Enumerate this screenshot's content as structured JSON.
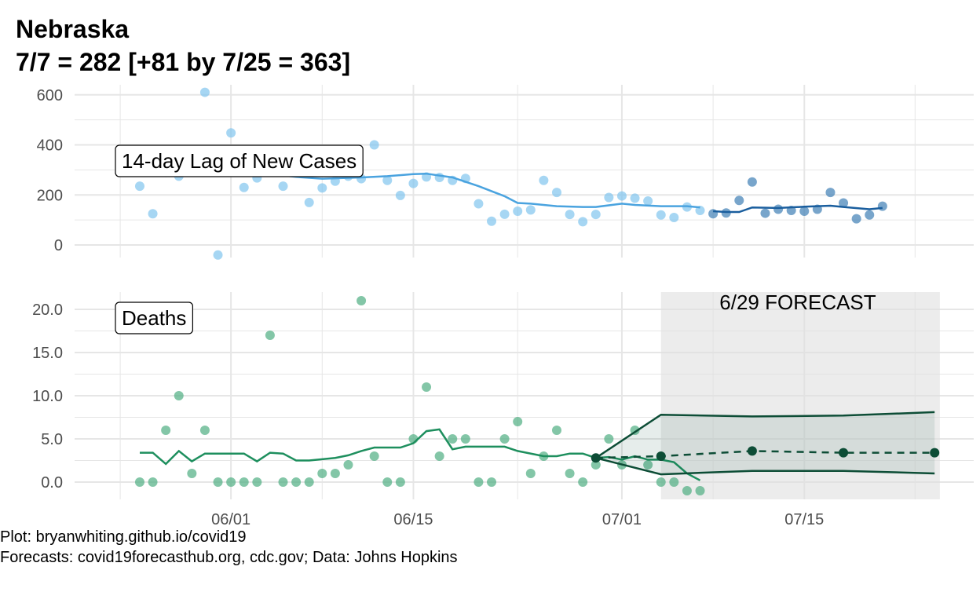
{
  "title": {
    "line1": "Nebraska",
    "line2": "7/7 = 282 [+81 by 7/25 = 363]"
  },
  "caption": {
    "line1": "Plot: bryanwhiting.github.io/covid19",
    "line2": "Forecasts: covid19forecasthub.org, cdc.gov; Data: Johns Hopkins"
  },
  "colors": {
    "cases_point": "#80c4ee",
    "cases_line": "#4aa3df",
    "cases_recent_point": "#3f7fb5",
    "cases_recent_line": "#1a5e9e",
    "deaths_point": "#4fae82",
    "deaths_line": "#1e8f5e",
    "forecast": "#0d4d36",
    "forecast_band": "#e0e0e0",
    "grid": "#e6e6e6"
  },
  "chart_data": [
    {
      "type": "scatter",
      "panel_label": "14-day Lag of New Cases",
      "x_ticks": [
        {
          "label": "06/01",
          "x": 7
        },
        {
          "label": "06/15",
          "x": 21
        },
        {
          "label": "07/01",
          "x": 37
        },
        {
          "label": "07/15",
          "x": 51
        }
      ],
      "y_ticks": [
        0,
        200,
        400,
        600
      ],
      "ylim": [
        -50,
        640
      ],
      "xlim": [
        -5,
        64
      ],
      "grid": true,
      "observed_points": [
        {
          "x": 0,
          "y": 235
        },
        {
          "x": 1,
          "y": 125
        },
        {
          "x": 2,
          "y": 290
        },
        {
          "x": 3,
          "y": 275
        },
        {
          "x": 4,
          "y": 305
        },
        {
          "x": 5,
          "y": 610
        },
        {
          "x": 6,
          "y": -40
        },
        {
          "x": 7,
          "y": 448
        },
        {
          "x": 8,
          "y": 230
        },
        {
          "x": 9,
          "y": 268
        },
        {
          "x": 10,
          "y": 300
        },
        {
          "x": 11,
          "y": 235
        },
        {
          "x": 12,
          "y": 300
        },
        {
          "x": 13,
          "y": 170
        },
        {
          "x": 14,
          "y": 228
        },
        {
          "x": 15,
          "y": 255
        },
        {
          "x": 16,
          "y": 275
        },
        {
          "x": 17,
          "y": 265
        },
        {
          "x": 18,
          "y": 400
        },
        {
          "x": 19,
          "y": 258
        },
        {
          "x": 20,
          "y": 198
        },
        {
          "x": 21,
          "y": 246
        },
        {
          "x": 22,
          "y": 272
        },
        {
          "x": 23,
          "y": 270
        },
        {
          "x": 24,
          "y": 258
        },
        {
          "x": 25,
          "y": 266
        },
        {
          "x": 26,
          "y": 165
        },
        {
          "x": 27,
          "y": 95
        },
        {
          "x": 28,
          "y": 123
        },
        {
          "x": 29,
          "y": 135
        },
        {
          "x": 30,
          "y": 140
        },
        {
          "x": 31,
          "y": 258
        },
        {
          "x": 32,
          "y": 210
        },
        {
          "x": 33,
          "y": 122
        },
        {
          "x": 34,
          "y": 93
        },
        {
          "x": 35,
          "y": 122
        },
        {
          "x": 36,
          "y": 190
        },
        {
          "x": 37,
          "y": 196
        },
        {
          "x": 38,
          "y": 187
        },
        {
          "x": 39,
          "y": 176
        },
        {
          "x": 40,
          "y": 120
        },
        {
          "x": 41,
          "y": 110
        },
        {
          "x": 42,
          "y": 152
        },
        {
          "x": 43,
          "y": 138
        }
      ],
      "observed_trend": [
        {
          "x": 0,
          "y": 300
        },
        {
          "x": 3,
          "y": 295
        },
        {
          "x": 6,
          "y": 305
        },
        {
          "x": 9,
          "y": 290
        },
        {
          "x": 12,
          "y": 272
        },
        {
          "x": 14,
          "y": 265
        },
        {
          "x": 17,
          "y": 270
        },
        {
          "x": 19,
          "y": 275
        },
        {
          "x": 21,
          "y": 283
        },
        {
          "x": 22,
          "y": 285
        },
        {
          "x": 24,
          "y": 270
        },
        {
          "x": 26,
          "y": 235
        },
        {
          "x": 28,
          "y": 195
        },
        {
          "x": 29,
          "y": 168
        },
        {
          "x": 30,
          "y": 165
        },
        {
          "x": 32,
          "y": 155
        },
        {
          "x": 34,
          "y": 152
        },
        {
          "x": 35,
          "y": 152
        },
        {
          "x": 37,
          "y": 165
        },
        {
          "x": 38,
          "y": 160
        },
        {
          "x": 40,
          "y": 155
        },
        {
          "x": 42,
          "y": 155
        },
        {
          "x": 43,
          "y": 150
        }
      ],
      "recent_points": [
        {
          "x": 44,
          "y": 125
        },
        {
          "x": 45,
          "y": 128
        },
        {
          "x": 46,
          "y": 178
        },
        {
          "x": 47,
          "y": 252
        },
        {
          "x": 48,
          "y": 127
        },
        {
          "x": 49,
          "y": 143
        },
        {
          "x": 50,
          "y": 138
        },
        {
          "x": 51,
          "y": 135
        },
        {
          "x": 52,
          "y": 143
        },
        {
          "x": 53,
          "y": 210
        },
        {
          "x": 54,
          "y": 168
        },
        {
          "x": 55,
          "y": 105
        },
        {
          "x": 56,
          "y": 120
        },
        {
          "x": 57,
          "y": 155
        }
      ],
      "recent_trend": [
        {
          "x": 44,
          "y": 135
        },
        {
          "x": 45,
          "y": 132
        },
        {
          "x": 46,
          "y": 132
        },
        {
          "x": 47,
          "y": 150
        },
        {
          "x": 49,
          "y": 148
        },
        {
          "x": 51,
          "y": 153
        },
        {
          "x": 53,
          "y": 157
        },
        {
          "x": 54,
          "y": 152
        },
        {
          "x": 56,
          "y": 143
        },
        {
          "x": 57,
          "y": 148
        }
      ]
    },
    {
      "type": "scatter",
      "panel_label": "Deaths",
      "forecast_label": "6/29 FORECAST",
      "x_ticks": [
        {
          "label": "06/01",
          "x": 7
        },
        {
          "label": "06/15",
          "x": 21
        },
        {
          "label": "07/01",
          "x": 37
        },
        {
          "label": "07/15",
          "x": 51
        }
      ],
      "y_ticks": [
        0.0,
        5.0,
        10.0,
        15.0,
        20.0
      ],
      "y_tick_labels": [
        "0.0",
        "5.0",
        "10.0",
        "15.0",
        "20.0"
      ],
      "ylim": [
        -2.0,
        22.0
      ],
      "xlim": [
        -5,
        64
      ],
      "grid": true,
      "forecast_region": [
        40,
        61
      ],
      "observed_points": [
        {
          "x": 0,
          "y": 0
        },
        {
          "x": 1,
          "y": 0
        },
        {
          "x": 2,
          "y": 6
        },
        {
          "x": 3,
          "y": 10
        },
        {
          "x": 4,
          "y": 1
        },
        {
          "x": 5,
          "y": 6
        },
        {
          "x": 6,
          "y": 0
        },
        {
          "x": 7,
          "y": 0
        },
        {
          "x": 8,
          "y": 0
        },
        {
          "x": 9,
          "y": 0
        },
        {
          "x": 10,
          "y": 17
        },
        {
          "x": 11,
          "y": 0
        },
        {
          "x": 12,
          "y": 0
        },
        {
          "x": 13,
          "y": 0
        },
        {
          "x": 14,
          "y": 1
        },
        {
          "x": 15,
          "y": 1
        },
        {
          "x": 16,
          "y": 2
        },
        {
          "x": 17,
          "y": 21
        },
        {
          "x": 18,
          "y": 3
        },
        {
          "x": 19,
          "y": 0
        },
        {
          "x": 20,
          "y": 0
        },
        {
          "x": 21,
          "y": 5
        },
        {
          "x": 22,
          "y": 11
        },
        {
          "x": 23,
          "y": 3
        },
        {
          "x": 24,
          "y": 5
        },
        {
          "x": 25,
          "y": 5
        },
        {
          "x": 26,
          "y": 0
        },
        {
          "x": 27,
          "y": 0
        },
        {
          "x": 28,
          "y": 5
        },
        {
          "x": 29,
          "y": 7
        },
        {
          "x": 30,
          "y": 1
        },
        {
          "x": 31,
          "y": 3
        },
        {
          "x": 32,
          "y": 6
        },
        {
          "x": 33,
          "y": 1
        },
        {
          "x": 34,
          "y": 0
        },
        {
          "x": 35,
          "y": 2
        },
        {
          "x": 36,
          "y": 5
        },
        {
          "x": 37,
          "y": 2
        },
        {
          "x": 38,
          "y": 6
        },
        {
          "x": 39,
          "y": 2
        },
        {
          "x": 40,
          "y": 0
        },
        {
          "x": 41,
          "y": 0
        },
        {
          "x": 42,
          "y": -1
        },
        {
          "x": 43,
          "y": -1
        }
      ],
      "observed_trend": [
        {
          "x": 0,
          "y": 3.4
        },
        {
          "x": 1,
          "y": 3.4
        },
        {
          "x": 2,
          "y": 2.1
        },
        {
          "x": 3,
          "y": 3.6
        },
        {
          "x": 4,
          "y": 2.4
        },
        {
          "x": 5,
          "y": 3.3
        },
        {
          "x": 8,
          "y": 3.3
        },
        {
          "x": 9,
          "y": 2.4
        },
        {
          "x": 10,
          "y": 3.4
        },
        {
          "x": 11,
          "y": 3.3
        },
        {
          "x": 12,
          "y": 2.5
        },
        {
          "x": 13,
          "y": 2.5
        },
        {
          "x": 15,
          "y": 2.8
        },
        {
          "x": 16,
          "y": 3.1
        },
        {
          "x": 17,
          "y": 3.6
        },
        {
          "x": 18,
          "y": 4.0
        },
        {
          "x": 20,
          "y": 4.0
        },
        {
          "x": 21,
          "y": 4.5
        },
        {
          "x": 22,
          "y": 5.9
        },
        {
          "x": 23,
          "y": 6.1
        },
        {
          "x": 24,
          "y": 3.8
        },
        {
          "x": 25,
          "y": 4.1
        },
        {
          "x": 28,
          "y": 4.1
        },
        {
          "x": 29,
          "y": 3.6
        },
        {
          "x": 31,
          "y": 3.0
        },
        {
          "x": 32,
          "y": 3.0
        },
        {
          "x": 33,
          "y": 3.3
        },
        {
          "x": 34,
          "y": 3.3
        },
        {
          "x": 35,
          "y": 2.8
        },
        {
          "x": 36,
          "y": 2.9
        },
        {
          "x": 37,
          "y": 2.6
        },
        {
          "x": 38,
          "y": 3.0
        },
        {
          "x": 39,
          "y": 2.6
        },
        {
          "x": 40,
          "y": 2.6
        },
        {
          "x": 41,
          "y": 2.3
        },
        {
          "x": 42,
          "y": 1.0
        },
        {
          "x": 43,
          "y": 0.2
        }
      ],
      "forecast_points": [
        {
          "x": 35,
          "y": 2.8
        },
        {
          "x": 40,
          "y": 3.0
        },
        {
          "x": 47,
          "y": 3.6
        },
        {
          "x": 54,
          "y": 3.4
        },
        {
          "x": 61,
          "y": 3.4
        }
      ],
      "forecast_upper": [
        {
          "x": 35,
          "y": 2.8
        },
        {
          "x": 40,
          "y": 7.8
        },
        {
          "x": 47,
          "y": 7.6
        },
        {
          "x": 54,
          "y": 7.7
        },
        {
          "x": 61,
          "y": 8.1
        }
      ],
      "forecast_lower": [
        {
          "x": 35,
          "y": 2.8
        },
        {
          "x": 40,
          "y": 0.9
        },
        {
          "x": 47,
          "y": 1.3
        },
        {
          "x": 54,
          "y": 1.3
        },
        {
          "x": 61,
          "y": 1.0
        }
      ]
    }
  ]
}
